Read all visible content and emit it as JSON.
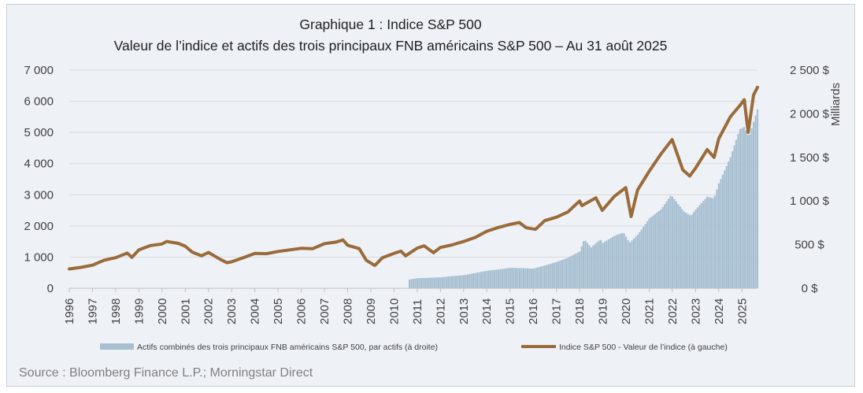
{
  "chart_data": {
    "type": "bar+line",
    "title": "Graphique 1 : Indice S&P 500",
    "subtitle": "Valeur de l’indice et actifs des trois principaux FNB américains S&P 500 – Au 31 août 2025",
    "y_left": {
      "min": 0,
      "max": 7000,
      "ticks": [
        "0",
        "1 000",
        "2 000",
        "3 000",
        "4 000",
        "5 000",
        "6 000",
        "7 000"
      ]
    },
    "y_right": {
      "label": "Milliards",
      "min": 0,
      "max": 2500,
      "ticks": [
        "0 $",
        "500 $",
        "1 000 $",
        "1 500 $",
        "2 000 $",
        "2 500 $"
      ]
    },
    "x_ticks": [
      "1996",
      "1997",
      "1998",
      "1999",
      "2000",
      "2001",
      "2002",
      "2003",
      "2004",
      "2005",
      "2006",
      "2007",
      "2008",
      "2009",
      "2010",
      "2011",
      "2012",
      "2013",
      "2014",
      "2015",
      "2016",
      "2017",
      "2018",
      "2019",
      "2020",
      "2021",
      "2022",
      "2023",
      "2024",
      "2025"
    ],
    "x_range": [
      1996,
      2025.67
    ],
    "grid": true,
    "legend_position": "bottom",
    "series": [
      {
        "name": "Actifs combinés des trois principaux FNB américains S&P 500, par actifs (à droite)",
        "type": "bar",
        "axis": "right",
        "color": "#a7bfd1",
        "points": [
          [
            2010.67,
            100
          ],
          [
            2011.0,
            115
          ],
          [
            2011.5,
            120
          ],
          [
            2012.0,
            125
          ],
          [
            2012.5,
            140
          ],
          [
            2013.0,
            150
          ],
          [
            2013.5,
            175
          ],
          [
            2014.0,
            200
          ],
          [
            2014.5,
            215
          ],
          [
            2015.0,
            235
          ],
          [
            2015.5,
            230
          ],
          [
            2016.0,
            225
          ],
          [
            2016.5,
            260
          ],
          [
            2017.0,
            300
          ],
          [
            2017.5,
            350
          ],
          [
            2018.0,
            420
          ],
          [
            2018.2,
            560
          ],
          [
            2018.5,
            470
          ],
          [
            2018.9,
            560
          ],
          [
            2019.0,
            520
          ],
          [
            2019.5,
            600
          ],
          [
            2019.9,
            640
          ],
          [
            2020.15,
            520
          ],
          [
            2020.5,
            610
          ],
          [
            2020.9,
            760
          ],
          [
            2021.0,
            800
          ],
          [
            2021.5,
            900
          ],
          [
            2021.95,
            1070
          ],
          [
            2022.5,
            880
          ],
          [
            2022.8,
            830
          ],
          [
            2023.0,
            900
          ],
          [
            2023.5,
            1050
          ],
          [
            2023.8,
            1030
          ],
          [
            2024.0,
            1200
          ],
          [
            2024.5,
            1500
          ],
          [
            2024.9,
            1820
          ],
          [
            2025.1,
            1850
          ],
          [
            2025.3,
            1730
          ],
          [
            2025.67,
            2050
          ]
        ]
      },
      {
        "name": "Indice S&P 500 - Valeur de l’indice (à gauche)",
        "type": "line",
        "axis": "left",
        "color": "#9a6b3a",
        "points": [
          [
            1996.0,
            620
          ],
          [
            1996.5,
            670
          ],
          [
            1997.0,
            740
          ],
          [
            1997.5,
            900
          ],
          [
            1997.8,
            950
          ],
          [
            1998.0,
            980
          ],
          [
            1998.5,
            1130
          ],
          [
            1998.7,
            990
          ],
          [
            1999.0,
            1230
          ],
          [
            1999.5,
            1370
          ],
          [
            2000.0,
            1420
          ],
          [
            2000.2,
            1500
          ],
          [
            2000.7,
            1440
          ],
          [
            2001.0,
            1350
          ],
          [
            2001.3,
            1160
          ],
          [
            2001.7,
            1040
          ],
          [
            2002.0,
            1150
          ],
          [
            2002.5,
            930
          ],
          [
            2002.8,
            820
          ],
          [
            2003.0,
            850
          ],
          [
            2003.5,
            980
          ],
          [
            2004.0,
            1120
          ],
          [
            2004.5,
            1110
          ],
          [
            2005.0,
            1180
          ],
          [
            2005.5,
            1230
          ],
          [
            2006.0,
            1280
          ],
          [
            2006.5,
            1270
          ],
          [
            2007.0,
            1430
          ],
          [
            2007.5,
            1480
          ],
          [
            2007.8,
            1550
          ],
          [
            2008.0,
            1380
          ],
          [
            2008.5,
            1270
          ],
          [
            2008.8,
            900
          ],
          [
            2009.17,
            730
          ],
          [
            2009.5,
            980
          ],
          [
            2010.0,
            1120
          ],
          [
            2010.3,
            1190
          ],
          [
            2010.5,
            1040
          ],
          [
            2011.0,
            1290
          ],
          [
            2011.3,
            1360
          ],
          [
            2011.7,
            1140
          ],
          [
            2012.0,
            1310
          ],
          [
            2012.5,
            1390
          ],
          [
            2013.0,
            1500
          ],
          [
            2013.5,
            1630
          ],
          [
            2014.0,
            1830
          ],
          [
            2014.5,
            1950
          ],
          [
            2015.0,
            2050
          ],
          [
            2015.4,
            2110
          ],
          [
            2015.7,
            1940
          ],
          [
            2016.1,
            1890
          ],
          [
            2016.5,
            2170
          ],
          [
            2017.0,
            2280
          ],
          [
            2017.5,
            2450
          ],
          [
            2018.0,
            2800
          ],
          [
            2018.1,
            2650
          ],
          [
            2018.7,
            2900
          ],
          [
            2018.98,
            2500
          ],
          [
            2019.5,
            2950
          ],
          [
            2019.99,
            3230
          ],
          [
            2020.22,
            2300
          ],
          [
            2020.5,
            3150
          ],
          [
            2021.0,
            3750
          ],
          [
            2021.5,
            4300
          ],
          [
            2021.99,
            4770
          ],
          [
            2022.45,
            3800
          ],
          [
            2022.75,
            3600
          ],
          [
            2023.0,
            3850
          ],
          [
            2023.5,
            4450
          ],
          [
            2023.8,
            4200
          ],
          [
            2024.0,
            4800
          ],
          [
            2024.5,
            5500
          ],
          [
            2024.95,
            5900
          ],
          [
            2025.1,
            6050
          ],
          [
            2025.27,
            5000
          ],
          [
            2025.5,
            6200
          ],
          [
            2025.67,
            6450
          ]
        ]
      }
    ],
    "legend": [
      {
        "label": "Actifs combinés des trois principaux FNB américains S&P 500, par actifs (à droite)",
        "color": "#a7bfd1"
      },
      {
        "label": "Indice S&P 500 - Valeur de l’indice (à gauche)",
        "color": "#9a6b3a"
      }
    ]
  },
  "source": "Source : Bloomberg Finance L.P.; Morningstar Direct"
}
